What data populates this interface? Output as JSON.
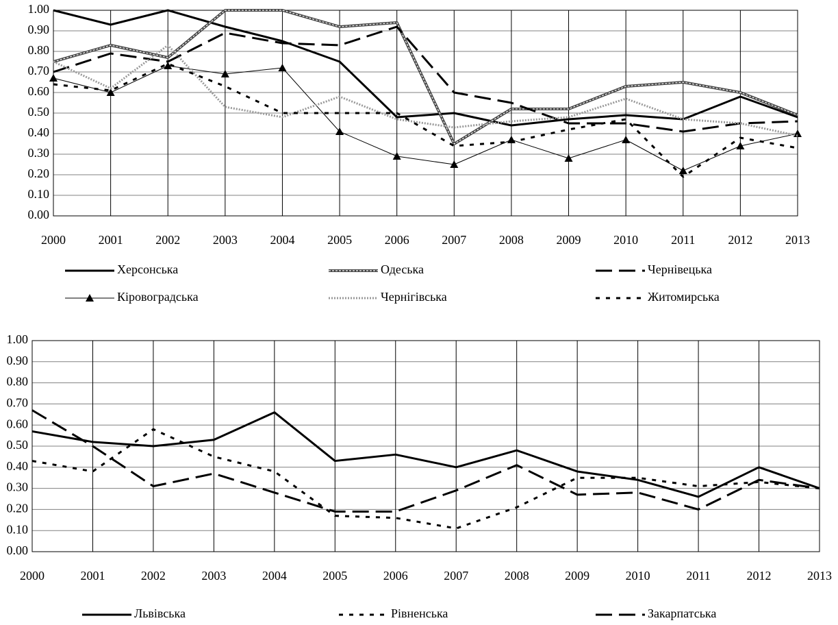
{
  "chart_data": [
    {
      "type": "line",
      "x": [
        2000,
        2001,
        2002,
        2003,
        2004,
        2005,
        2006,
        2007,
        2008,
        2009,
        2010,
        2011,
        2012,
        2013
      ],
      "xlim": [
        2000,
        2013
      ],
      "xticks": [
        2000,
        2001,
        2002,
        2003,
        2004,
        2005,
        2006,
        2007,
        2008,
        2009,
        2010,
        2011,
        2012,
        2013
      ],
      "ylim": [
        0,
        1
      ],
      "yticks": [
        {
          "value": 0,
          "label": "0.00"
        },
        {
          "value": 0.1,
          "label": "0.10"
        },
        {
          "value": 0.2,
          "label": "0.20"
        },
        {
          "value": 0.3,
          "label": "0.30"
        },
        {
          "value": 0.4,
          "label": "0.40"
        },
        {
          "value": 0.5,
          "label": "0.50"
        },
        {
          "value": 0.6,
          "label": "0.60"
        },
        {
          "value": 0.7,
          "label": "0.70"
        },
        {
          "value": 0.8,
          "label": "0.80"
        },
        {
          "value": 0.9,
          "label": "0.90"
        },
        {
          "value": 1,
          "label": "1.00"
        }
      ],
      "grid": true,
      "series": [
        {
          "name": "Херсонська",
          "color": "#000000",
          "style": "solid",
          "width": 3,
          "values": [
            1.0,
            0.93,
            1.0,
            0.92,
            0.85,
            0.75,
            0.48,
            0.5,
            0.44,
            0.47,
            0.49,
            0.47,
            0.58,
            0.48
          ]
        },
        {
          "name": "Одеська",
          "color": "#444444",
          "style": "double",
          "width": 4,
          "values": [
            0.75,
            0.83,
            0.77,
            1.0,
            1.0,
            0.92,
            0.94,
            0.35,
            0.52,
            0.52,
            0.63,
            0.65,
            0.6,
            0.49
          ]
        },
        {
          "name": "Чернівецька",
          "color": "#000000",
          "style": "dash",
          "width": 3,
          "values": [
            0.7,
            0.79,
            0.75,
            0.89,
            0.84,
            0.83,
            0.92,
            0.6,
            0.55,
            0.45,
            0.45,
            0.41,
            0.45,
            0.46
          ]
        },
        {
          "name": "Кіровоградська",
          "color": "#000000",
          "style": "solid",
          "width": 1,
          "marker": "triangle",
          "values": [
            0.67,
            0.6,
            0.73,
            0.69,
            0.72,
            0.41,
            0.29,
            0.25,
            0.37,
            0.28,
            0.37,
            0.22,
            0.34,
            0.4
          ]
        },
        {
          "name": "Чернігівська",
          "color": "#999999",
          "style": "dot",
          "width": 3,
          "values": [
            0.75,
            0.62,
            0.83,
            0.53,
            0.48,
            0.58,
            0.47,
            0.43,
            0.46,
            0.48,
            0.57,
            0.47,
            0.45,
            0.39
          ]
        },
        {
          "name": "Житомирська",
          "color": "#000000",
          "style": "shortdash",
          "width": 3,
          "values": [
            0.64,
            0.61,
            0.74,
            0.63,
            0.5,
            0.5,
            0.5,
            0.34,
            0.36,
            0.42,
            0.47,
            0.19,
            0.38,
            0.33
          ]
        }
      ]
    },
    {
      "type": "line",
      "x": [
        2000,
        2001,
        2002,
        2003,
        2004,
        2005,
        2006,
        2007,
        2008,
        2009,
        2010,
        2011,
        2012,
        2013
      ],
      "xlim": [
        2000,
        2013
      ],
      "xticks": [
        2000,
        2001,
        2002,
        2003,
        2004,
        2005,
        2006,
        2007,
        2008,
        2009,
        2010,
        2011,
        2012,
        2013
      ],
      "ylim": [
        0,
        1
      ],
      "yticks": [
        {
          "value": 0,
          "label": "0.00"
        },
        {
          "value": 0.1,
          "label": "0.10"
        },
        {
          "value": 0.2,
          "label": "0.20"
        },
        {
          "value": 0.3,
          "label": "0.30"
        },
        {
          "value": 0.4,
          "label": "0.40"
        },
        {
          "value": 0.5,
          "label": "0.50"
        },
        {
          "value": 0.6,
          "label": "0.60"
        },
        {
          "value": 0.7,
          "label": "0.70"
        },
        {
          "value": 0.8,
          "label": "0.80"
        },
        {
          "value": 0.9,
          "label": "0.90"
        },
        {
          "value": 1,
          "label": "1.00"
        }
      ],
      "grid": true,
      "series": [
        {
          "name": "Львівська",
          "color": "#000000",
          "style": "solid",
          "width": 3,
          "values": [
            0.57,
            0.52,
            0.5,
            0.53,
            0.66,
            0.43,
            0.46,
            0.4,
            0.48,
            0.38,
            0.34,
            0.26,
            0.4,
            0.3
          ]
        },
        {
          "name": "Рівненська",
          "color": "#000000",
          "style": "shortdash",
          "width": 3,
          "values": [
            0.43,
            0.38,
            0.58,
            0.45,
            0.38,
            0.17,
            0.16,
            0.11,
            0.21,
            0.35,
            0.35,
            0.31,
            0.33,
            0.3
          ]
        },
        {
          "name": "Закарпатська",
          "color": "#000000",
          "style": "dash",
          "width": 3,
          "values": [
            0.67,
            0.5,
            0.31,
            0.37,
            0.28,
            0.19,
            0.19,
            0.29,
            0.41,
            0.27,
            0.28,
            0.2,
            0.34,
            0.3
          ]
        }
      ]
    }
  ]
}
